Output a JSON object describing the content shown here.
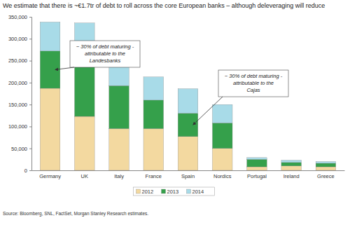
{
  "chart_data": {
    "type": "bar",
    "stacked": true,
    "title": "We estimate that there is ~€1.7tr of debt to roll across the core European banks – although deleveraging will reduce",
    "categories": [
      "Germany",
      "UK",
      "Italy",
      "France",
      "Spain",
      "Nordics",
      "Portugal",
      "Ireland",
      "Greece"
    ],
    "series": [
      {
        "name": "2012",
        "color": "#f3d9a0",
        "values": [
          187000,
          123000,
          95000,
          95000,
          77000,
          50000,
          8000,
          10000,
          8000
        ]
      },
      {
        "name": "2013",
        "color": "#35a04b",
        "values": [
          85000,
          123000,
          98000,
          65000,
          53000,
          58000,
          17000,
          8000,
          8000
        ]
      },
      {
        "name": "2014",
        "color": "#a8dbe8",
        "values": [
          66000,
          90000,
          77000,
          53000,
          56000,
          42000,
          4000,
          5000,
          4000
        ]
      }
    ],
    "ylim": [
      0,
      350000
    ],
    "yticks": [
      0,
      {
        "value": 50000,
        "label": "50,000"
      },
      {
        "value": 100000,
        "label": "100,000"
      },
      {
        "value": 150000,
        "label": "150,000"
      },
      {
        "value": 200000,
        "label": "200,000"
      },
      {
        "value": 250000,
        "label": "250,000"
      },
      {
        "value": 300000,
        "label": "300,000"
      },
      {
        "value": 350000,
        "label": "350,000"
      }
    ],
    "grid": false,
    "legend": "bottom",
    "annotations": [
      {
        "text": "~ 30% of debt maturing - attributable to the Landesbanks",
        "category": "Germany"
      },
      {
        "text": "~ 30% of debt maturing - attributable to the Cajas",
        "category": "Spain"
      }
    ],
    "source": "Source: Bloomberg, SNL, FactSet, Morgan Stanley Research estimates."
  }
}
